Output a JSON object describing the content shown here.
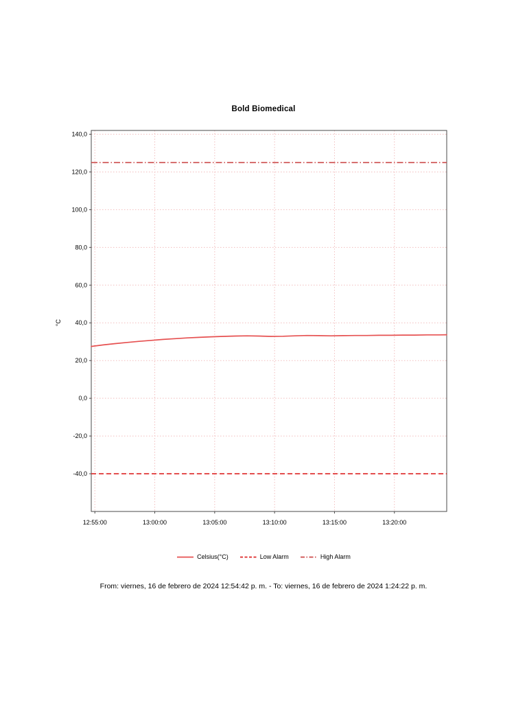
{
  "chart_data": {
    "type": "line",
    "title": "Bold Biomedical",
    "ylabel": "°C",
    "footer": "From: viernes, 16 de febrero de 2024 12:54:42 p. m.  -  To: viernes, 16 de febrero de 2024 1:24:22 p. m.",
    "x_range_seconds": [
      0,
      1780
    ],
    "x_ticks": [
      {
        "seconds": 18,
        "label": "12:55:00"
      },
      {
        "seconds": 318,
        "label": "13:00:00"
      },
      {
        "seconds": 618,
        "label": "13:05:00"
      },
      {
        "seconds": 918,
        "label": "13:10:00"
      },
      {
        "seconds": 1218,
        "label": "13:15:00"
      },
      {
        "seconds": 1518,
        "label": "13:20:00"
      }
    ],
    "ylim": [
      -60,
      142
    ],
    "y_ticks": [
      {
        "value": 140,
        "label": "140,0"
      },
      {
        "value": 120,
        "label": "120,0"
      },
      {
        "value": 100,
        "label": "100,0"
      },
      {
        "value": 80,
        "label": "80,0"
      },
      {
        "value": 60,
        "label": "60,0"
      },
      {
        "value": 40,
        "label": "40,0"
      },
      {
        "value": 20,
        "label": "20,0"
      },
      {
        "value": 0,
        "label": "0,0"
      },
      {
        "value": -20,
        "label": "-20,0"
      },
      {
        "value": -40,
        "label": "-40,0"
      }
    ],
    "grid": {
      "on": true,
      "color": "#f2bdbd"
    },
    "border_color": "#4a4a4a",
    "series": [
      {
        "name": "Celsius(°C)",
        "style": "solid",
        "color": "#e65050",
        "x": [
          0,
          60,
          120,
          180,
          240,
          300,
          360,
          420,
          480,
          540,
          600,
          660,
          720,
          780,
          840,
          900,
          960,
          1020,
          1080,
          1140,
          1200,
          1260,
          1320,
          1380,
          1440,
          1500,
          1560,
          1620,
          1680,
          1740,
          1780
        ],
        "values": [
          27.5,
          28.3,
          29.0,
          29.6,
          30.2,
          30.7,
          31.2,
          31.6,
          32.0,
          32.3,
          32.6,
          32.8,
          33.0,
          33.1,
          33.0,
          32.8,
          32.9,
          33.1,
          33.3,
          33.2,
          33.1,
          33.2,
          33.3,
          33.3,
          33.4,
          33.4,
          33.5,
          33.5,
          33.6,
          33.6,
          33.7
        ]
      },
      {
        "name": "Low Alarm",
        "style": "dashed",
        "color": "#dd2424",
        "value": -40
      },
      {
        "name": "High Alarm",
        "style": "dashdot",
        "color": "#cc4a4a",
        "value": 125
      }
    ],
    "legend_position": "bottom"
  }
}
